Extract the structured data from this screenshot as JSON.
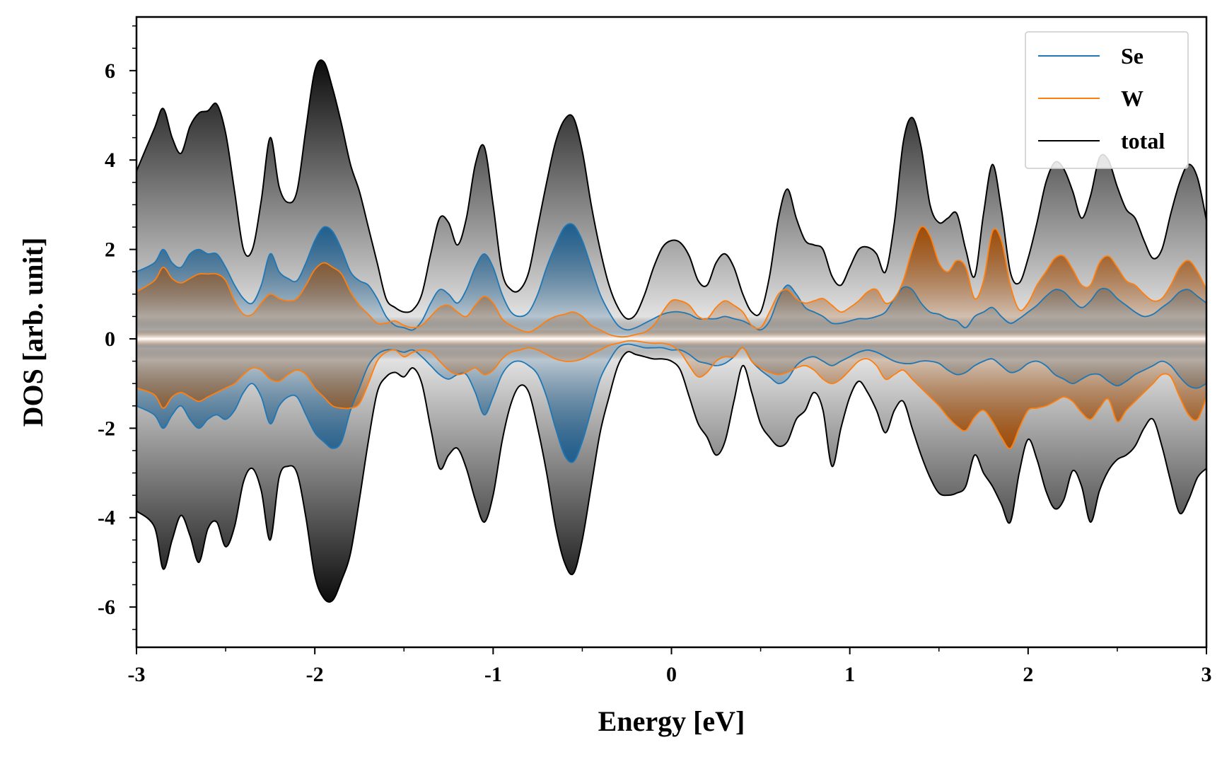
{
  "chart_data": {
    "type": "area",
    "xlabel": "Energy [eV]",
    "ylabel": "DOS [arb. unit]",
    "xlim": [
      -3,
      3
    ],
    "ylim": [
      -6.9,
      7.2
    ],
    "xticks": [
      -3,
      -2,
      -1,
      0,
      1,
      2,
      3
    ],
    "xtick_labels": [
      "-3",
      "-2",
      "-1",
      "0",
      "1",
      "2",
      "3"
    ],
    "yticks": [
      -6,
      -4,
      -2,
      0,
      2,
      4,
      6
    ],
    "ytick_labels": [
      "-6",
      "-4",
      "-2",
      "0",
      "2",
      "4",
      "6"
    ],
    "legend_position": "top-right",
    "x": [
      -3.0,
      -2.9,
      -2.85,
      -2.8,
      -2.75,
      -2.7,
      -2.65,
      -2.6,
      -2.55,
      -2.5,
      -2.45,
      -2.4,
      -2.35,
      -2.3,
      -2.25,
      -2.2,
      -2.15,
      -2.1,
      -2.05,
      -2.0,
      -1.95,
      -1.9,
      -1.85,
      -1.8,
      -1.75,
      -1.7,
      -1.65,
      -1.6,
      -1.55,
      -1.5,
      -1.45,
      -1.4,
      -1.35,
      -1.3,
      -1.25,
      -1.2,
      -1.15,
      -1.1,
      -1.05,
      -1.0,
      -0.95,
      -0.9,
      -0.85,
      -0.8,
      -0.75,
      -0.7,
      -0.65,
      -0.6,
      -0.55,
      -0.5,
      -0.45,
      -0.4,
      -0.35,
      -0.3,
      -0.25,
      -0.2,
      -0.15,
      -0.1,
      -0.05,
      0.0,
      0.05,
      0.1,
      0.15,
      0.2,
      0.25,
      0.3,
      0.35,
      0.4,
      0.45,
      0.5,
      0.55,
      0.6,
      0.65,
      0.7,
      0.75,
      0.8,
      0.85,
      0.9,
      0.95,
      1.0,
      1.05,
      1.1,
      1.15,
      1.2,
      1.25,
      1.3,
      1.35,
      1.4,
      1.45,
      1.5,
      1.55,
      1.6,
      1.65,
      1.7,
      1.75,
      1.8,
      1.85,
      1.9,
      1.95,
      2.0,
      2.05,
      2.1,
      2.15,
      2.2,
      2.25,
      2.3,
      2.35,
      2.4,
      2.45,
      2.5,
      2.55,
      2.6,
      2.65,
      2.7,
      2.75,
      2.8,
      2.85,
      2.9,
      2.95,
      3.0
    ],
    "series": [
      {
        "name": "Se",
        "color": "#1f77b4",
        "fill_color": "#1f5f8f",
        "up": [
          1.5,
          1.7,
          2.0,
          1.7,
          1.6,
          1.9,
          2.0,
          1.9,
          1.9,
          1.6,
          1.2,
          0.9,
          0.8,
          1.2,
          1.9,
          1.5,
          1.35,
          1.3,
          1.7,
          2.2,
          2.5,
          2.4,
          2.0,
          1.5,
          1.3,
          1.2,
          0.9,
          0.5,
          0.3,
          0.25,
          0.2,
          0.4,
          0.8,
          1.1,
          1.0,
          0.8,
          1.1,
          1.6,
          1.9,
          1.6,
          1.0,
          0.6,
          0.5,
          0.6,
          1.0,
          1.6,
          2.1,
          2.5,
          2.55,
          2.2,
          1.6,
          1.0,
          0.6,
          0.3,
          0.2,
          0.25,
          0.35,
          0.45,
          0.55,
          0.6,
          0.6,
          0.55,
          0.45,
          0.45,
          0.45,
          0.5,
          0.45,
          0.4,
          0.3,
          0.2,
          0.4,
          0.9,
          1.2,
          1.0,
          0.7,
          0.6,
          0.5,
          0.35,
          0.35,
          0.4,
          0.45,
          0.45,
          0.5,
          0.6,
          0.9,
          1.15,
          1.1,
          0.8,
          0.6,
          0.55,
          0.45,
          0.4,
          0.25,
          0.5,
          0.6,
          0.7,
          0.5,
          0.35,
          0.45,
          0.6,
          0.75,
          0.95,
          1.1,
          1.05,
          0.85,
          0.7,
          0.85,
          1.1,
          1.1,
          0.9,
          0.75,
          0.6,
          0.5,
          0.55,
          0.7,
          0.85,
          1.05,
          1.1,
          0.95,
          0.8
        ],
        "down": [
          -1.5,
          -1.7,
          -2.0,
          -1.7,
          -1.5,
          -1.8,
          -2.0,
          -1.8,
          -1.7,
          -1.8,
          -1.6,
          -1.2,
          -1.0,
          -1.3,
          -1.9,
          -1.5,
          -1.3,
          -1.3,
          -1.7,
          -2.1,
          -2.3,
          -2.45,
          -2.3,
          -1.6,
          -1.1,
          -0.6,
          -0.35,
          -0.25,
          -0.25,
          -0.3,
          -0.25,
          -0.4,
          -0.6,
          -0.8,
          -0.9,
          -0.8,
          -0.8,
          -1.2,
          -1.7,
          -1.3,
          -0.8,
          -0.55,
          -0.5,
          -0.6,
          -0.8,
          -1.3,
          -2.0,
          -2.6,
          -2.75,
          -2.3,
          -1.6,
          -0.9,
          -0.5,
          -0.2,
          -0.12,
          -0.15,
          -0.2,
          -0.2,
          -0.2,
          -0.25,
          -0.25,
          -0.35,
          -0.5,
          -0.55,
          -0.6,
          -0.55,
          -0.4,
          -0.2,
          -0.5,
          -0.7,
          -0.85,
          -1.0,
          -0.9,
          -0.6,
          -0.45,
          -0.4,
          -0.5,
          -0.6,
          -0.5,
          -0.4,
          -0.3,
          -0.25,
          -0.3,
          -0.4,
          -0.5,
          -0.55,
          -0.55,
          -0.5,
          -0.5,
          -0.55,
          -0.7,
          -0.8,
          -0.75,
          -0.6,
          -0.5,
          -0.45,
          -0.6,
          -0.75,
          -0.7,
          -0.55,
          -0.5,
          -0.6,
          -0.8,
          -0.9,
          -1.0,
          -0.9,
          -0.8,
          -0.8,
          -0.95,
          -1.05,
          -0.95,
          -0.8,
          -0.7,
          -0.6,
          -0.5,
          -0.6,
          -0.85,
          -1.05,
          -1.1,
          -1.0
        ]
      },
      {
        "name": "W",
        "color": "#ff7f0e",
        "fill_color": "#a04d08",
        "up": [
          1.05,
          1.3,
          1.6,
          1.35,
          1.25,
          1.35,
          1.45,
          1.45,
          1.45,
          1.3,
          0.85,
          0.55,
          0.55,
          0.8,
          1.0,
          0.9,
          0.85,
          0.9,
          1.2,
          1.55,
          1.7,
          1.6,
          1.45,
          1.05,
          0.75,
          0.55,
          0.35,
          0.35,
          0.4,
          0.3,
          0.25,
          0.3,
          0.5,
          0.7,
          0.75,
          0.6,
          0.5,
          0.75,
          0.95,
          0.8,
          0.45,
          0.3,
          0.2,
          0.15,
          0.25,
          0.4,
          0.5,
          0.55,
          0.6,
          0.5,
          0.3,
          0.2,
          0.1,
          0.05,
          0.05,
          0.1,
          0.15,
          0.3,
          0.6,
          0.85,
          0.85,
          0.75,
          0.5,
          0.45,
          0.7,
          0.85,
          0.75,
          0.6,
          0.3,
          0.25,
          0.6,
          1.0,
          1.1,
          0.9,
          0.8,
          0.85,
          0.9,
          0.75,
          0.6,
          0.7,
          0.85,
          1.05,
          1.1,
          0.8,
          0.9,
          1.3,
          2.0,
          2.5,
          2.3,
          1.7,
          1.5,
          1.75,
          1.6,
          0.9,
          1.3,
          2.4,
          2.2,
          1.2,
          0.65,
          0.8,
          1.2,
          1.5,
          1.8,
          1.85,
          1.55,
          1.2,
          1.2,
          1.7,
          1.85,
          1.6,
          1.3,
          1.2,
          1.0,
          0.85,
          0.9,
          1.2,
          1.6,
          1.75,
          1.5,
          1.1
        ],
        "down": [
          -1.1,
          -1.25,
          -1.55,
          -1.3,
          -1.2,
          -1.3,
          -1.4,
          -1.3,
          -1.2,
          -1.1,
          -1.0,
          -0.8,
          -0.65,
          -0.7,
          -0.9,
          -0.95,
          -0.8,
          -0.7,
          -0.8,
          -1.1,
          -1.3,
          -1.5,
          -1.55,
          -1.55,
          -1.45,
          -1.0,
          -0.5,
          -0.3,
          -0.25,
          -0.4,
          -0.3,
          -0.25,
          -0.3,
          -0.5,
          -0.7,
          -0.8,
          -0.75,
          -0.65,
          -0.8,
          -0.7,
          -0.45,
          -0.3,
          -0.25,
          -0.2,
          -0.25,
          -0.35,
          -0.45,
          -0.5,
          -0.5,
          -0.45,
          -0.35,
          -0.25,
          -0.15,
          -0.1,
          -0.05,
          -0.05,
          -0.08,
          -0.1,
          -0.1,
          -0.15,
          -0.3,
          -0.6,
          -0.85,
          -0.75,
          -0.5,
          -0.4,
          -0.4,
          -0.2,
          -0.5,
          -0.65,
          -0.75,
          -0.8,
          -0.75,
          -0.65,
          -0.6,
          -0.7,
          -0.9,
          -1.0,
          -0.9,
          -0.7,
          -0.5,
          -0.45,
          -0.6,
          -0.9,
          -0.8,
          -0.7,
          -0.9,
          -1.1,
          -1.3,
          -1.5,
          -1.75,
          -1.95,
          -2.05,
          -1.75,
          -1.6,
          -1.85,
          -2.2,
          -2.45,
          -2.0,
          -1.6,
          -1.55,
          -1.5,
          -1.4,
          -1.3,
          -1.4,
          -1.65,
          -1.8,
          -1.55,
          -1.35,
          -1.85,
          -1.6,
          -1.4,
          -1.2,
          -1.0,
          -0.8,
          -0.85,
          -1.3,
          -1.7,
          -1.8,
          -1.3
        ]
      },
      {
        "name": "total",
        "color": "#000000",
        "fill_color": "#0d0d0d",
        "up": [
          3.75,
          4.7,
          5.15,
          4.5,
          4.15,
          4.75,
          5.05,
          5.1,
          5.25,
          4.6,
          3.3,
          2.0,
          2.0,
          3.1,
          4.5,
          3.4,
          3.05,
          3.3,
          4.7,
          6.0,
          6.2,
          5.6,
          4.8,
          3.9,
          3.3,
          2.5,
          1.7,
          0.9,
          0.7,
          0.6,
          0.65,
          1.0,
          1.9,
          2.7,
          2.6,
          2.1,
          2.7,
          3.9,
          4.3,
          3.0,
          1.5,
          1.1,
          1.1,
          1.5,
          2.5,
          3.5,
          4.4,
          4.9,
          4.95,
          4.2,
          3.0,
          2.0,
          1.2,
          0.7,
          0.45,
          0.55,
          1.0,
          1.6,
          2.05,
          2.2,
          2.15,
          1.85,
          1.3,
          1.2,
          1.7,
          1.9,
          1.6,
          1.0,
          0.6,
          0.6,
          1.4,
          2.7,
          3.35,
          2.7,
          2.2,
          2.1,
          2.0,
          1.4,
          1.2,
          1.6,
          2.0,
          2.05,
          1.9,
          1.5,
          2.6,
          4.4,
          4.95,
          4.3,
          3.0,
          2.6,
          2.7,
          2.8,
          2.0,
          1.4,
          2.8,
          3.9,
          2.9,
          1.5,
          1.25,
          1.8,
          2.6,
          3.5,
          3.95,
          3.8,
          3.3,
          2.7,
          3.2,
          4.05,
          4.0,
          3.4,
          2.9,
          2.7,
          2.2,
          1.8,
          2.0,
          2.8,
          3.5,
          3.9,
          3.6,
          2.65
        ],
        "down": [
          -3.85,
          -4.2,
          -5.15,
          -4.5,
          -3.95,
          -4.4,
          -5.0,
          -4.25,
          -4.1,
          -4.65,
          -4.2,
          -3.2,
          -2.9,
          -3.4,
          -4.5,
          -3.1,
          -2.85,
          -3.0,
          -4.0,
          -5.3,
          -5.8,
          -5.85,
          -5.4,
          -4.8,
          -3.6,
          -2.3,
          -1.2,
          -0.85,
          -0.75,
          -0.85,
          -0.65,
          -1.0,
          -2.0,
          -2.9,
          -2.6,
          -2.45,
          -2.9,
          -3.6,
          -4.1,
          -3.5,
          -2.3,
          -1.45,
          -1.05,
          -1.2,
          -2.0,
          -3.0,
          -4.2,
          -5.0,
          -5.25,
          -4.5,
          -3.3,
          -2.1,
          -1.3,
          -0.6,
          -0.3,
          -0.35,
          -0.4,
          -0.45,
          -0.45,
          -0.5,
          -0.7,
          -1.3,
          -1.9,
          -2.2,
          -2.6,
          -2.3,
          -1.4,
          -0.6,
          -1.2,
          -1.9,
          -2.2,
          -2.4,
          -2.3,
          -1.8,
          -1.6,
          -1.2,
          -1.6,
          -2.85,
          -2.0,
          -1.3,
          -0.95,
          -1.2,
          -1.6,
          -2.1,
          -1.6,
          -1.4,
          -2.0,
          -2.6,
          -3.1,
          -3.45,
          -3.5,
          -3.45,
          -3.3,
          -2.6,
          -3.0,
          -3.3,
          -3.7,
          -4.1,
          -3.0,
          -2.25,
          -2.7,
          -3.4,
          -3.8,
          -3.6,
          -2.95,
          -3.3,
          -4.1,
          -3.4,
          -2.95,
          -2.7,
          -2.6,
          -2.4,
          -2.0,
          -1.8,
          -2.4,
          -3.2,
          -3.9,
          -3.6,
          -3.1,
          -2.9
        ]
      }
    ]
  }
}
